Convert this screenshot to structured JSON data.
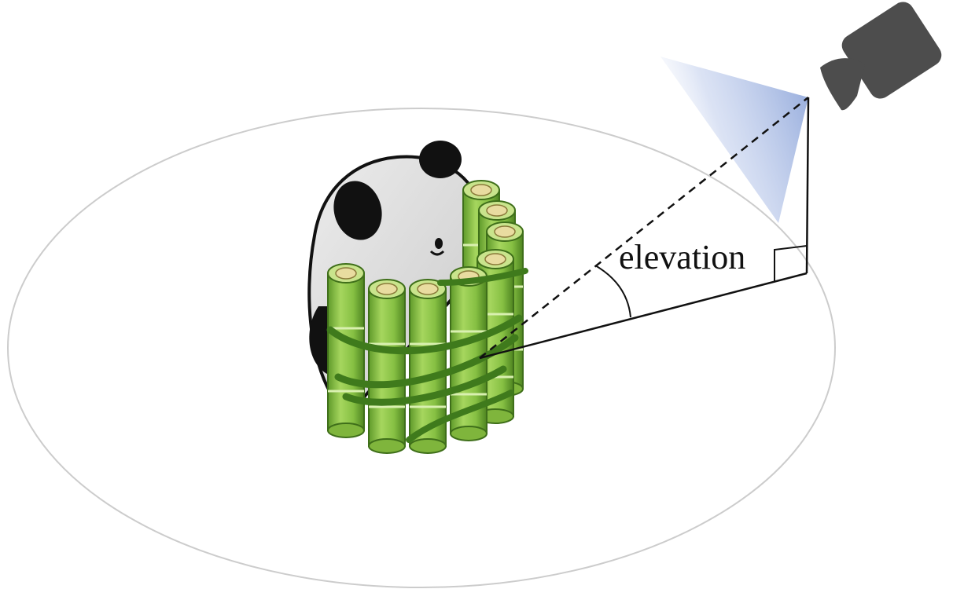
{
  "diagram": {
    "angle_label": "elevation",
    "subject": "panda-with-bamboo-bundle",
    "camera": "camera-icon",
    "colors": {
      "ground_ellipse": "#cccccc",
      "lines": "#111111",
      "camera_body": "#4d4d4d",
      "view_cone": "#9fb3e0",
      "bamboo": "#8fc94a",
      "bamboo_dark": "#4a7d1f",
      "bamboo_light": "#c7e59a",
      "panda_fur": "#d9d9d9",
      "panda_black": "#111111"
    }
  }
}
